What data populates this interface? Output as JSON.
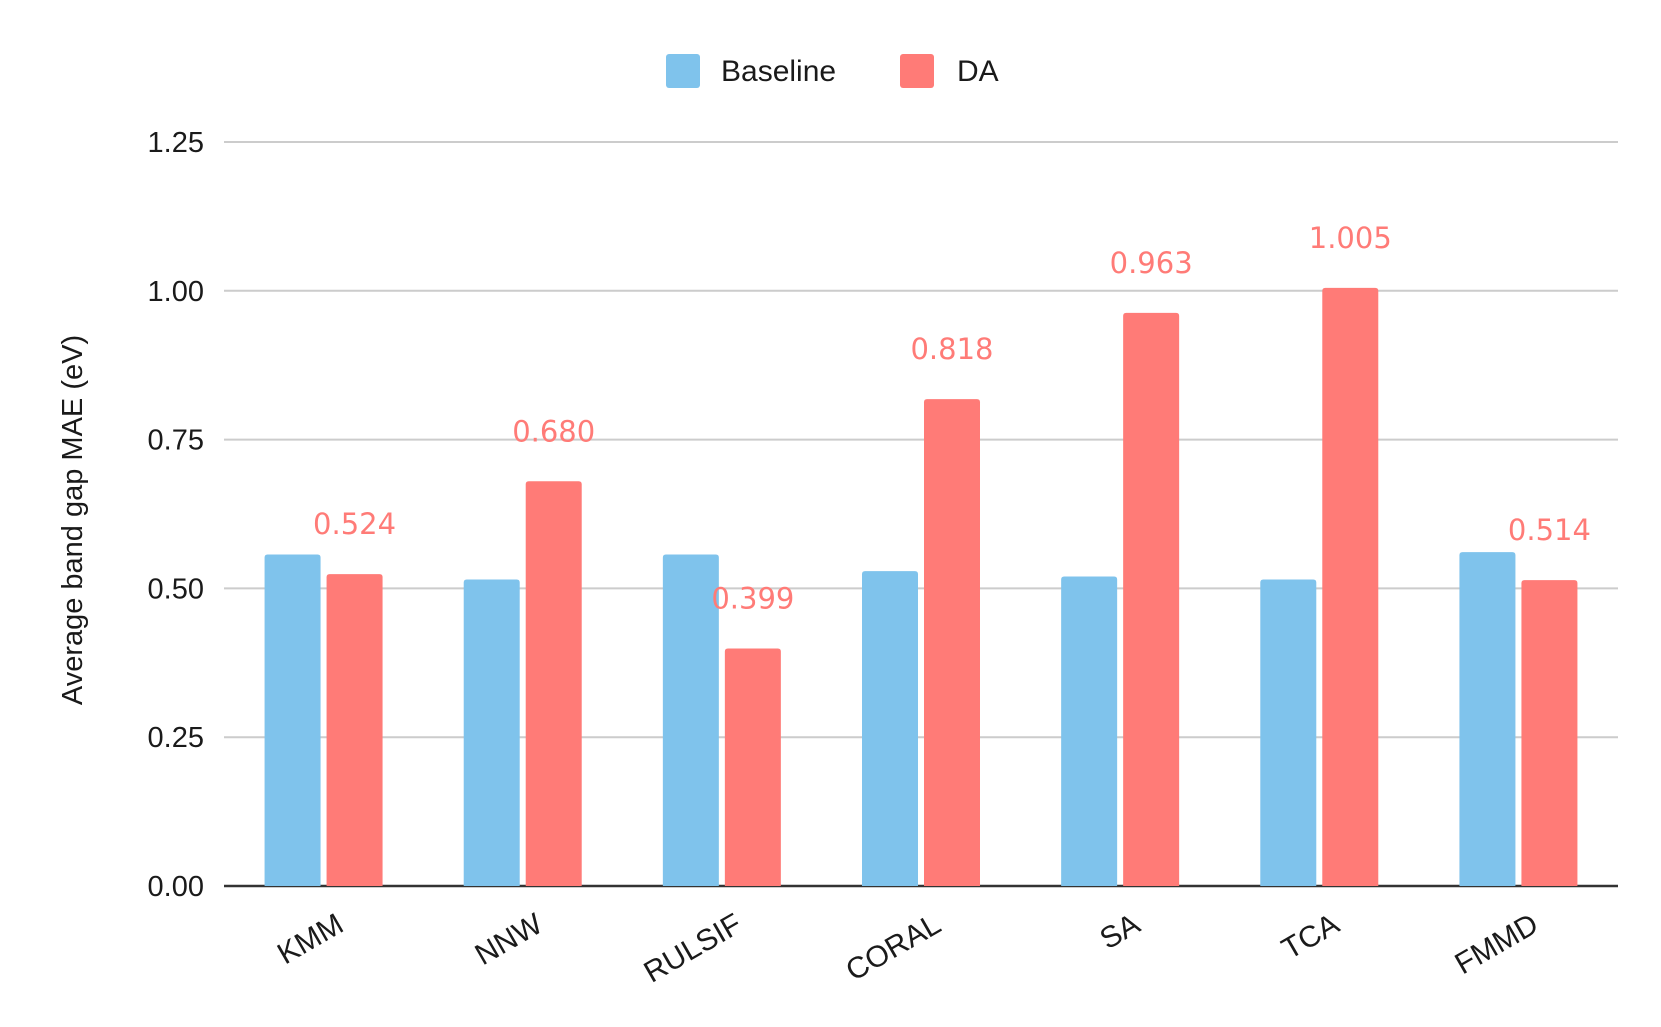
{
  "chart_data": {
    "type": "bar",
    "title": "",
    "xlabel": "",
    "ylabel": "Average band gap MAE (eV)",
    "ylim": [
      0,
      1.25
    ],
    "yticks": [
      "0.00",
      "0.25",
      "0.50",
      "0.75",
      "1.00",
      "1.25"
    ],
    "ytick_values": [
      0,
      0.25,
      0.5,
      0.75,
      1.0,
      1.25
    ],
    "grid": true,
    "legend_position": "top-center",
    "categories": [
      "KMM",
      "NNW",
      "RULSIF",
      "CORAL",
      "SA",
      "TCA",
      "FMMD"
    ],
    "series": [
      {
        "name": "Baseline",
        "color": "#7fc3ec",
        "values": [
          0.557,
          0.515,
          0.557,
          0.529,
          0.52,
          0.515,
          0.561
        ]
      },
      {
        "name": "DA",
        "color": "#ff7b77",
        "values": [
          0.524,
          0.68,
          0.399,
          0.818,
          0.963,
          1.005,
          0.514
        ],
        "labels": [
          "0.524",
          "0.680",
          "0.399",
          "0.818",
          "0.963",
          "1.005",
          "0.514"
        ]
      }
    ]
  }
}
